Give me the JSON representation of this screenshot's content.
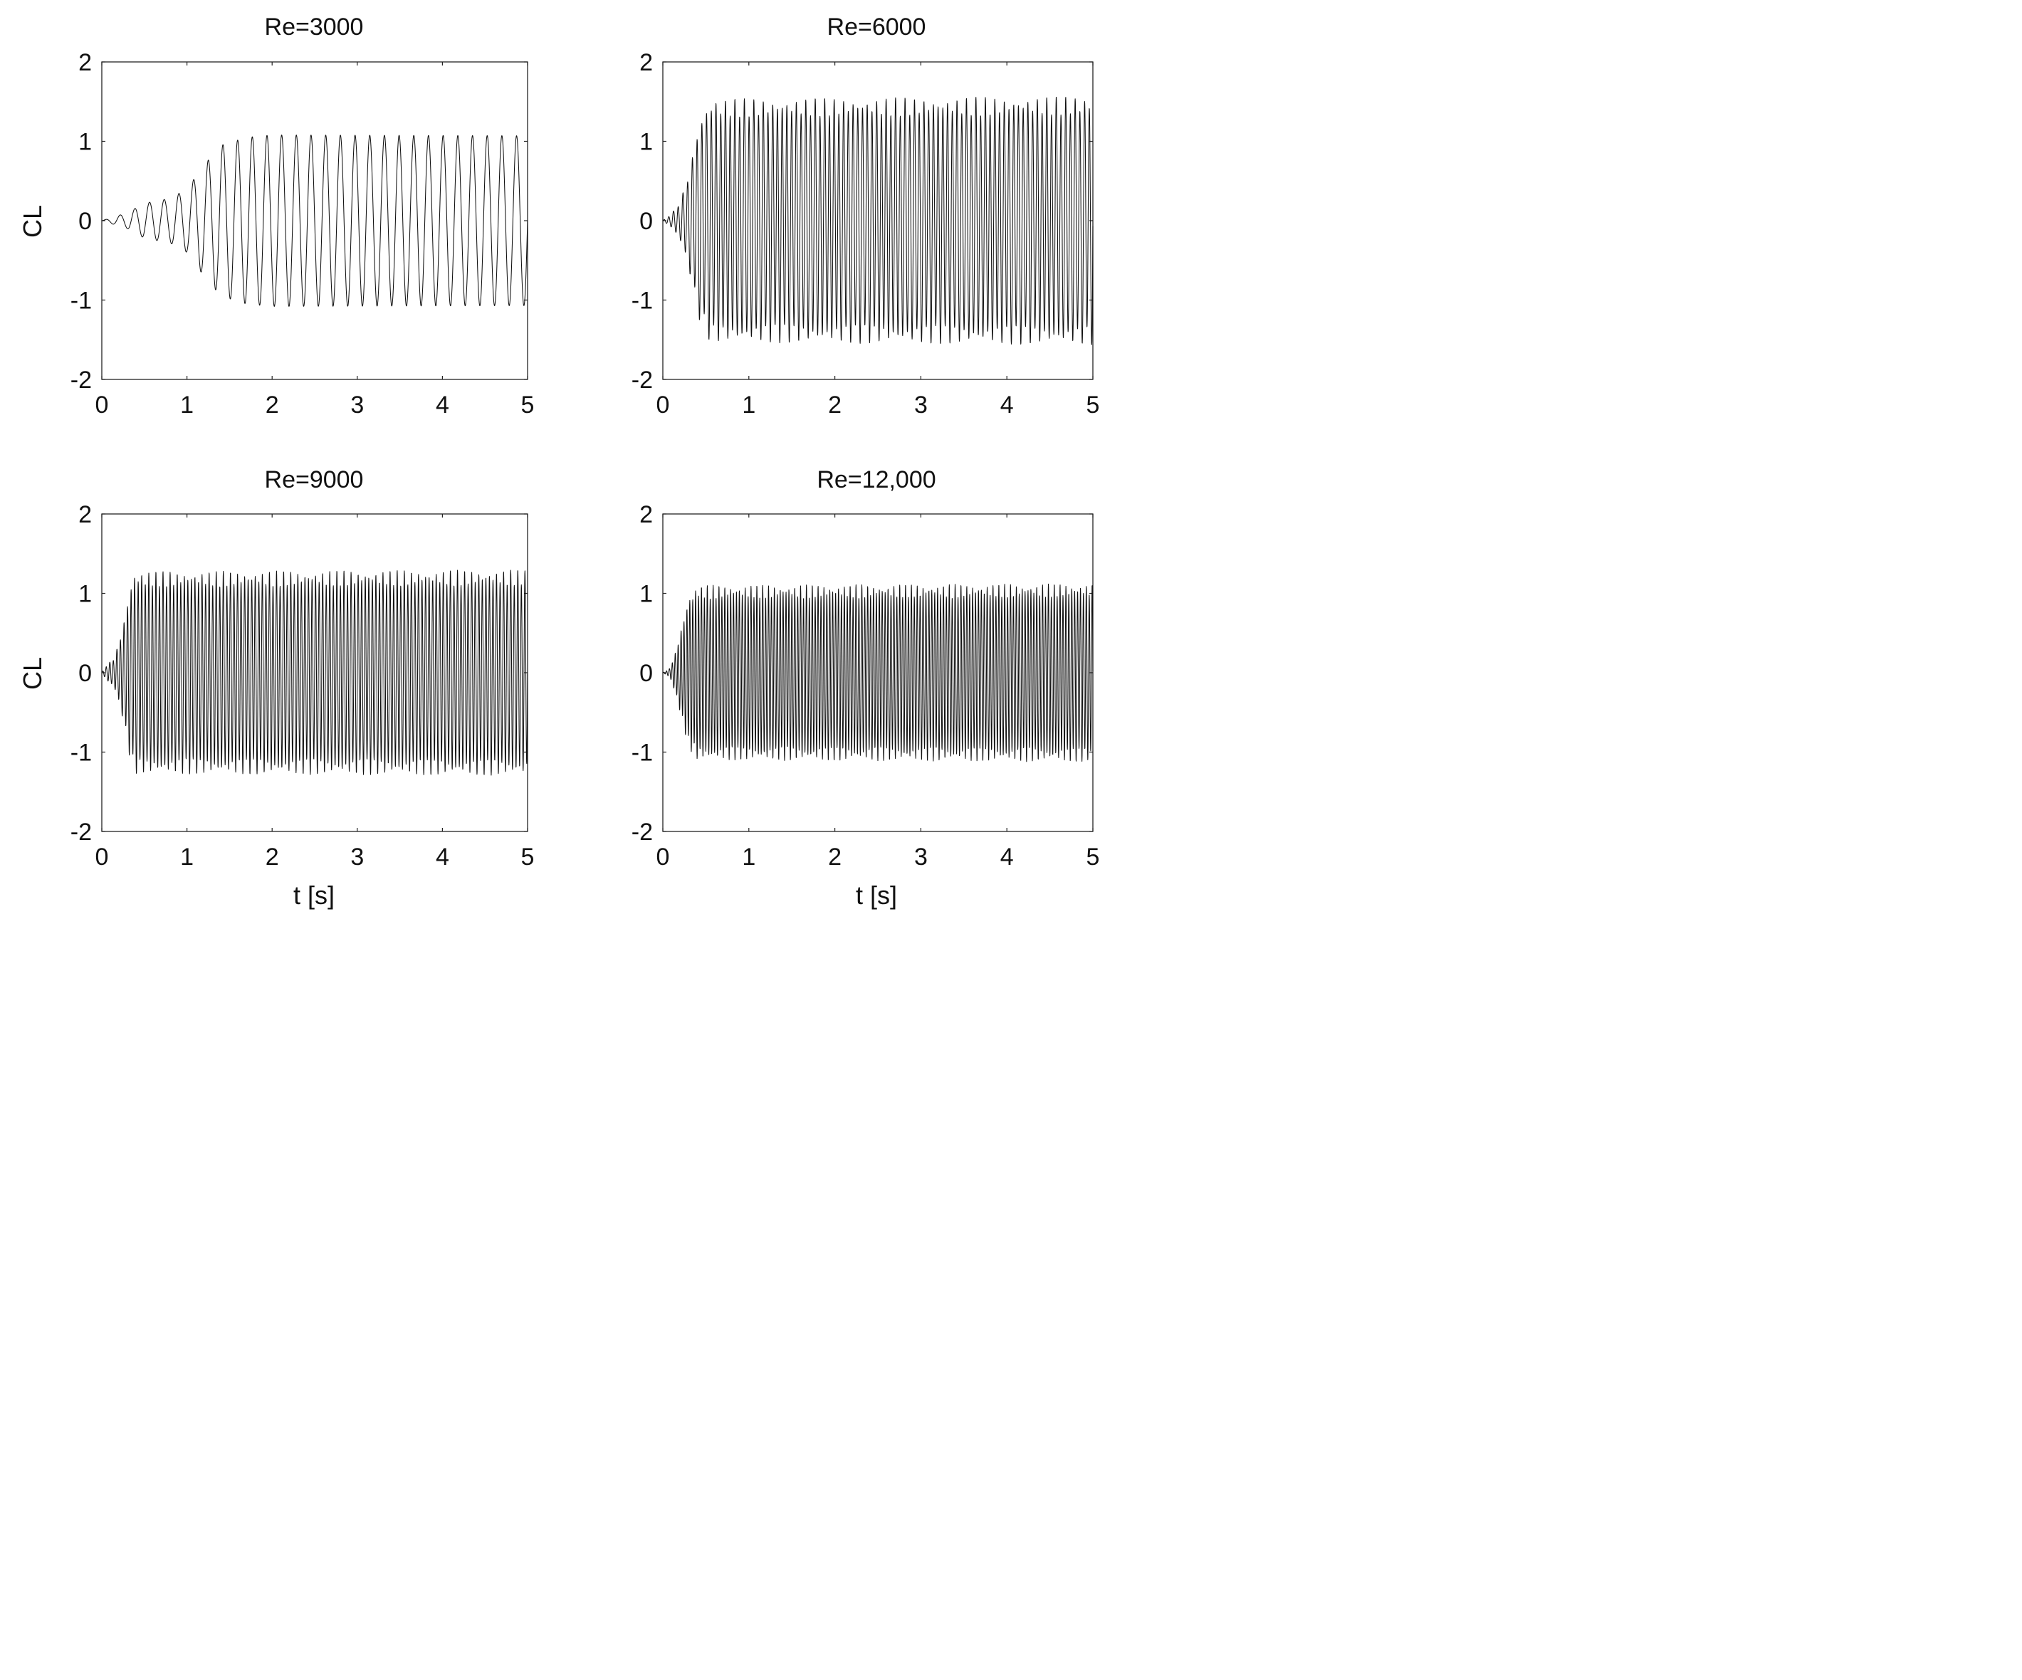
{
  "chart_data": [
    {
      "type": "line",
      "title": "Re=3000",
      "xlabel": "",
      "ylabel": "CL",
      "xlim": [
        0,
        5
      ],
      "ylim": [
        -2,
        2
      ],
      "xticks": [
        0,
        1,
        2,
        3,
        4,
        5
      ],
      "yticks": [
        -2,
        -1,
        0,
        1,
        2
      ],
      "xtick_labels": [
        "0",
        "1",
        "2",
        "3",
        "4",
        "5"
      ],
      "ytick_labels": [
        "-2",
        "-1",
        "0",
        "1",
        "2"
      ],
      "grid": false,
      "series": [
        {
          "dominant_frequency_hz": 5.8,
          "transient_end_time": 1.7,
          "steady_amplitude": 1.07,
          "envelope": [
            [
              0.0,
              0.0
            ],
            [
              0.3,
              0.1
            ],
            [
              0.5,
              0.22
            ],
            [
              0.8,
              0.28
            ],
            [
              1.0,
              0.4
            ],
            [
              1.2,
              0.7
            ],
            [
              1.4,
              0.95
            ],
            [
              1.7,
              1.05
            ],
            [
              2.0,
              1.08
            ],
            [
              5.0,
              1.07
            ]
          ]
        }
      ]
    },
    {
      "type": "line",
      "title": "Re=6000",
      "xlabel": "",
      "ylabel": "",
      "xlim": [
        0,
        5
      ],
      "ylim": [
        -2,
        2
      ],
      "xticks": [
        0,
        1,
        2,
        3,
        4,
        5
      ],
      "yticks": [
        -2,
        -1,
        0,
        1,
        2
      ],
      "xtick_labels": [
        "0",
        "1",
        "2",
        "3",
        "4",
        "5"
      ],
      "ytick_labels": [
        "-2",
        "-1",
        "0",
        "1",
        "2"
      ],
      "grid": false,
      "series": [
        {
          "dominant_frequency_hz": 18.2,
          "transient_end_time": 0.55,
          "steady_amplitude": 1.45,
          "envelope": [
            [
              0.0,
              0.0
            ],
            [
              0.1,
              0.08
            ],
            [
              0.2,
              0.22
            ],
            [
              0.3,
              0.55
            ],
            [
              0.42,
              1.15
            ],
            [
              0.55,
              1.42
            ],
            [
              5.0,
              1.45
            ]
          ]
        }
      ]
    },
    {
      "type": "line",
      "title": "Re=9000",
      "xlabel": "t [s]",
      "ylabel": "CL",
      "xlim": [
        0,
        5
      ],
      "ylim": [
        -2,
        2
      ],
      "xticks": [
        0,
        1,
        2,
        3,
        4,
        5
      ],
      "yticks": [
        -2,
        -1,
        0,
        1,
        2
      ],
      "xtick_labels": [
        "0",
        "1",
        "2",
        "3",
        "4",
        "5"
      ],
      "ytick_labels": [
        "-2",
        "-1",
        "0",
        "1",
        "2"
      ],
      "grid": false,
      "series": [
        {
          "dominant_frequency_hz": 24.0,
          "transient_end_time": 0.38,
          "steady_amplitude": 1.2,
          "envelope": [
            [
              0.0,
              0.0
            ],
            [
              0.05,
              0.08
            ],
            [
              0.15,
              0.18
            ],
            [
              0.25,
              0.55
            ],
            [
              0.32,
              0.95
            ],
            [
              0.38,
              1.18
            ],
            [
              5.0,
              1.2
            ]
          ]
        }
      ]
    },
    {
      "type": "line",
      "title": "Re=12,000",
      "xlabel": "t [s]",
      "ylabel": "",
      "xlim": [
        0,
        5
      ],
      "ylim": [
        -2,
        2
      ],
      "xticks": [
        0,
        1,
        2,
        3,
        4,
        5
      ],
      "yticks": [
        -2,
        -1,
        0,
        1,
        2
      ],
      "xtick_labels": [
        "0",
        "1",
        "2",
        "3",
        "4",
        "5"
      ],
      "ytick_labels": [
        "-2",
        "-1",
        "0",
        "1",
        "2"
      ],
      "grid": false,
      "series": [
        {
          "dominant_frequency_hz": 29.5,
          "transient_end_time": 0.35,
          "steady_amplitude": 1.04,
          "envelope": [
            [
              0.0,
              0.0
            ],
            [
              0.08,
              0.05
            ],
            [
              0.15,
              0.25
            ],
            [
              0.22,
              0.55
            ],
            [
              0.3,
              0.88
            ],
            [
              0.4,
              1.02
            ],
            [
              5.0,
              1.04
            ]
          ]
        }
      ]
    }
  ]
}
